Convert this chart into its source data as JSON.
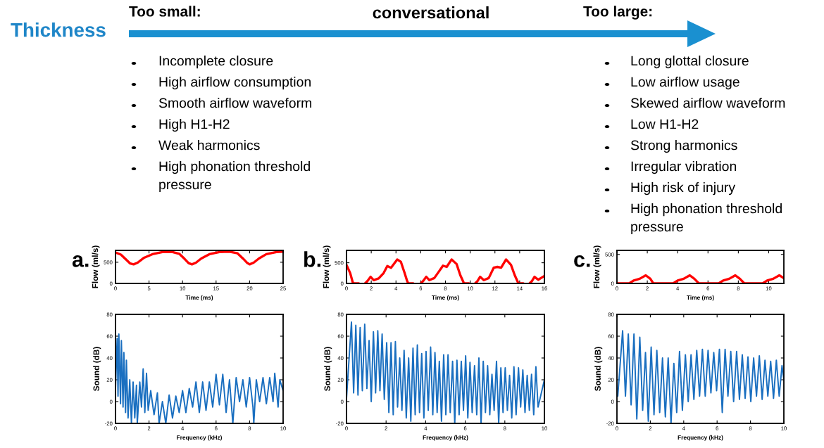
{
  "chart_data": [
    {
      "type": "other",
      "title": "Thickness",
      "annotations": [
        "conversational"
      ]
    },
    {
      "type": "other",
      "title": "Too small:",
      "annotations": [
        "Incomplete closure",
        "High airflow consumption",
        "Smooth airflow waveform",
        "High H1-H2",
        "Weak harmonics",
        "High phonation threshold\npressure"
      ]
    },
    {
      "type": "other",
      "title": "Too large:",
      "annotations": [
        "Long glottal closure",
        "Low airflow usage",
        "Skewed airflow waveform",
        "Low H1-H2",
        "Strong harmonics",
        "Irregular vibration",
        "High risk of injury",
        "High phonation threshold\npressure"
      ]
    },
    {
      "type": "line",
      "title": "a.",
      "xlabel": "Time (ms)",
      "ylabel": "Flow (ml/s)",
      "xlim": [
        0,
        25
      ],
      "xticks": [
        0,
        5,
        10,
        15,
        20,
        25
      ],
      "ylim": [
        0,
        780
      ],
      "yticks": [
        0,
        500
      ],
      "grid": false,
      "legend": false,
      "series": [
        {
          "color": "#ff0000",
          "x": [
            0,
            0.8,
            1.6,
            2.2,
            2.7,
            3.3,
            4.2,
            5.5,
            7,
            8.5,
            9.5,
            10.3,
            10.9,
            11.4,
            12,
            12.8,
            14,
            15.5,
            17,
            18.2,
            19,
            19.6,
            20,
            20.6,
            21.4,
            22.5,
            24,
            25
          ],
          "values": [
            730,
            680,
            560,
            470,
            450,
            490,
            600,
            690,
            740,
            740,
            700,
            580,
            480,
            450,
            490,
            590,
            690,
            740,
            750,
            710,
            590,
            490,
            450,
            490,
            590,
            690,
            740,
            750
          ]
        }
      ]
    },
    {
      "type": "line",
      "xlabel": "Frequency (kHz)",
      "ylabel": "Sound (dB)",
      "xlim": [
        0,
        10
      ],
      "xticks": [
        0,
        2,
        4,
        6,
        8,
        10
      ],
      "ylim": [
        -20,
        80
      ],
      "yticks": [
        -20,
        0,
        20,
        40,
        60,
        80
      ],
      "grid": false,
      "legend": false,
      "series": [
        {
          "color": "#1a6fc0",
          "x": [
            0,
            0.1,
            0.15,
            0.2,
            0.3,
            0.35,
            0.45,
            0.5,
            0.6,
            0.65,
            0.75,
            0.85,
            0.95,
            1.05,
            1.15,
            1.25,
            1.3,
            1.45,
            1.55,
            1.65,
            1.75,
            1.85,
            1.95,
            2.1,
            2.3,
            2.5,
            2.6,
            2.8,
            3.0,
            3.2,
            3.4,
            3.6,
            3.8,
            4.0,
            4.2,
            4.4,
            4.6,
            4.8,
            5.0,
            5.2,
            5.4,
            5.6,
            5.8,
            6.0,
            6.2,
            6.4,
            6.6,
            6.8,
            7.0,
            7.2,
            7.4,
            7.6,
            7.8,
            8.0,
            8.2,
            8.25,
            8.4,
            8.6,
            8.8,
            9.0,
            9.2,
            9.4,
            9.5,
            9.7,
            9.8,
            10
          ],
          "values": [
            12,
            58,
            5,
            62,
            -2,
            56,
            -5,
            45,
            -10,
            38,
            -15,
            20,
            -20,
            18,
            -15,
            15,
            -20,
            18,
            -5,
            30,
            -10,
            26,
            -8,
            10,
            -12,
            8,
            -20,
            0,
            -20,
            6,
            -15,
            5,
            -10,
            10,
            -10,
            12,
            -5,
            18,
            -10,
            18,
            -8,
            18,
            -5,
            25,
            -3,
            25,
            -10,
            20,
            -20,
            22,
            0,
            20,
            -5,
            22,
            -5,
            -20,
            20,
            0,
            22,
            -2,
            22,
            0,
            26,
            -5,
            20,
            10
          ]
        }
      ]
    },
    {
      "type": "line",
      "title": "b.",
      "xlabel": "Time (ms)",
      "ylabel": "Flow (ml/s)",
      "xlim": [
        0,
        16
      ],
      "xticks": [
        0,
        2,
        4,
        6,
        8,
        10,
        12,
        14,
        16
      ],
      "ylim": [
        0,
        800
      ],
      "yticks": [
        0,
        500
      ],
      "grid": false,
      "legend": false,
      "series": [
        {
          "color": "#ff0000",
          "x": [
            0,
            0.3,
            0.5,
            0.6,
            1.0,
            1.2,
            1.5,
            1.7,
            1.95,
            2.2,
            2.6,
            3.0,
            3.3,
            3.6,
            4.1,
            4.4,
            4.7,
            4.9,
            5.0,
            5.4,
            5.7,
            6.0,
            6.2,
            6.45,
            6.7,
            7.1,
            7.5,
            7.8,
            8.1,
            8.5,
            8.9,
            9.2,
            9.5,
            9.9,
            10.1,
            10.4,
            10.6,
            10.8,
            11.1,
            11.5,
            11.9,
            12.2,
            12.5,
            12.9,
            13.3,
            13.6,
            13.9,
            14.3,
            14.5,
            14.8,
            15.0,
            15.2,
            15.5,
            16
          ],
          "values": [
            450,
            250,
            30,
            0,
            0,
            null,
            0,
            60,
            160,
            80,
            120,
            250,
            420,
            380,
            580,
            520,
            250,
            60,
            0,
            0,
            null,
            0,
            60,
            160,
            80,
            130,
            300,
            430,
            400,
            580,
            470,
            200,
            0,
            0,
            null,
            0,
            60,
            160,
            80,
            130,
            380,
            400,
            380,
            580,
            450,
            200,
            0,
            0,
            null,
            0,
            60,
            160,
            90,
            180
          ]
        }
      ]
    },
    {
      "type": "line",
      "xlabel": "Frequency (kHz)",
      "ylabel": "Sound (dB)",
      "xlim": [
        0,
        10
      ],
      "xticks": [
        0,
        2,
        4,
        6,
        8,
        10
      ],
      "ylim": [
        -20,
        80
      ],
      "yticks": [
        -20,
        0,
        20,
        40,
        60,
        80
      ],
      "grid": false,
      "legend": false,
      "series": [
        {
          "color": "#1a6fc0",
          "x": [
            0,
            0.25,
            0.36,
            0.47,
            0.58,
            0.69,
            0.8,
            0.92,
            1.03,
            1.14,
            1.25,
            1.36,
            1.47,
            1.58,
            1.69,
            1.8,
            1.91,
            2.03,
            2.14,
            2.25,
            2.36,
            2.47,
            2.58,
            2.69,
            2.8,
            2.91,
            3.02,
            3.14,
            3.25,
            3.36,
            3.47,
            3.58,
            3.69,
            3.8,
            3.91,
            4.02,
            4.13,
            4.25,
            4.36,
            4.47,
            4.58,
            4.69,
            4.8,
            4.91,
            5.02,
            5.13,
            5.24,
            5.36,
            5.47,
            5.58,
            5.69,
            5.8,
            5.91,
            6.02,
            6.13,
            6.24,
            6.35,
            6.47,
            6.58,
            6.69,
            6.8,
            6.91,
            7.02,
            7.13,
            7.24,
            7.35,
            7.46,
            7.58,
            7.69,
            7.8,
            7.91,
            8.02,
            8.13,
            8.24,
            8.35,
            8.46,
            8.57,
            8.69,
            8.8,
            8.91,
            9.02,
            9.13,
            9.24,
            9.35,
            9.46,
            9.57,
            9.68,
            10
          ],
          "values": [
            3,
            73,
            8,
            70,
            6,
            68,
            10,
            71,
            12,
            56,
            0,
            64,
            8,
            65,
            10,
            62,
            2,
            54,
            -10,
            54,
            -12,
            55,
            -5,
            40,
            -8,
            47,
            -15,
            40,
            -18,
            49,
            -12,
            52,
            -10,
            44,
            -15,
            46,
            -8,
            50,
            -12,
            45,
            -10,
            37,
            -18,
            43,
            -12,
            43,
            -10,
            37,
            -20,
            38,
            -12,
            37,
            -8,
            42,
            -15,
            36,
            -10,
            33,
            -12,
            40,
            -20,
            37,
            -10,
            33,
            -12,
            25,
            -8,
            37,
            -20,
            31,
            -10,
            31,
            -8,
            24,
            -15,
            32,
            -12,
            31,
            -5,
            29,
            -10,
            24,
            -8,
            25,
            -12,
            32,
            -5,
            20
          ]
        }
      ]
    },
    {
      "type": "line",
      "title": "c.",
      "xlabel": "Time (ms)",
      "ylabel": "Flow (ml/s)",
      "xlim": [
        0,
        11
      ],
      "xticks": [
        0,
        2,
        4,
        6,
        8,
        10
      ],
      "ylim": [
        0,
        570
      ],
      "yticks": [
        0,
        500
      ],
      "grid": false,
      "legend": false,
      "series": [
        {
          "color": "#ff0000",
          "x": [
            0,
            0.8,
            1.1,
            1.5,
            1.9,
            2.2,
            2.4,
            3.7,
            4.0,
            4.4,
            4.8,
            5.1,
            5.4,
            6.7,
            7.0,
            7.4,
            7.8,
            8.1,
            8.4,
            9.6,
            9.9,
            10.3,
            10.7,
            11
          ],
          "values": [
            0,
            0,
            50,
            80,
            140,
            80,
            0,
            0,
            50,
            80,
            140,
            80,
            0,
            0,
            50,
            80,
            140,
            80,
            0,
            0,
            50,
            80,
            140,
            90
          ]
        }
      ]
    },
    {
      "type": "line",
      "xlabel": "Frequency (kHz)",
      "ylabel": "Sound (dB)",
      "xlim": [
        0,
        10
      ],
      "xticks": [
        0,
        2,
        4,
        6,
        8,
        10
      ],
      "ylim": [
        -20,
        80
      ],
      "yticks": [
        -20,
        0,
        20,
        40,
        60,
        80
      ],
      "grid": false,
      "legend": false,
      "series": [
        {
          "color": "#1a6fc0",
          "x": [
            0.05,
            0.34,
            0.51,
            0.68,
            0.85,
            1.02,
            1.19,
            1.37,
            1.54,
            1.71,
            1.88,
            2.05,
            2.22,
            2.39,
            2.56,
            2.73,
            2.9,
            3.07,
            3.24,
            3.41,
            3.58,
            3.75,
            3.92,
            4.1,
            4.27,
            4.44,
            4.61,
            4.78,
            4.95,
            5.12,
            5.29,
            5.46,
            5.63,
            5.8,
            5.97,
            6.14,
            6.31,
            6.48,
            6.65,
            6.82,
            6.99,
            7.17,
            7.34,
            7.51,
            7.68,
            7.85,
            8.02,
            8.19,
            8.36,
            8.53,
            8.7,
            8.87,
            9.04,
            9.21,
            9.38,
            9.55,
            9.72,
            9.89,
            10
          ],
          "values": [
            5,
            65,
            5,
            62,
            -3,
            62,
            -16,
            59,
            -8,
            45,
            -18,
            50,
            -12,
            47,
            -10,
            40,
            -14,
            40,
            -20,
            35,
            -10,
            46,
            -8,
            43,
            0,
            43,
            2,
            47,
            5,
            48,
            5,
            47,
            8,
            45,
            10,
            48,
            -10,
            48,
            5,
            46,
            0,
            46,
            2,
            43,
            3,
            41,
            0,
            40,
            5,
            42,
            2,
            38,
            5,
            37,
            3,
            38,
            5,
            33,
            20
          ]
        }
      ]
    }
  ]
}
